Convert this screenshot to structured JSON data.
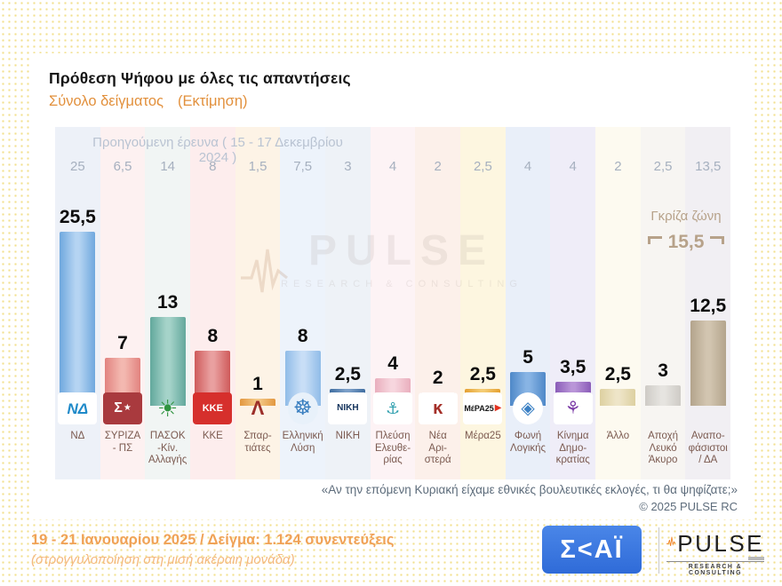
{
  "header": {
    "title": "Πρόθεση Ψήφου με όλες τις απαντήσεις",
    "subtitle_left": "Σύνολο δείγματος",
    "subtitle_right": "(Εκτίμηση)"
  },
  "previous_survey": {
    "label": "Προηγούμενη έρευνα ( 15 - 17 Δεκεμβρίου 2024 )"
  },
  "gray_zone": {
    "label": "Γκρίζα ζώνη",
    "value": "15,5"
  },
  "watermark": {
    "brand": "PULSE",
    "tagline": "RESEARCH & CONSULTING"
  },
  "chart_data": {
    "type": "bar",
    "title": "Πρόθεση Ψήφου με όλες τις απαντήσεις",
    "subtitle": "Σύνολο δείγματος (Εκτίμηση)",
    "categories": [
      "ΝΔ",
      "ΣΥΡΙΖΑ - ΠΣ",
      "ΠΑΣΟΚ -Κίν. Αλλαγής",
      "ΚΚΕ",
      "Σπαρτιάτες",
      "Ελληνική Λύση",
      "ΝΙΚΗ",
      "Πλεύση Ελευθερίας",
      "Νέα Αριστερά",
      "Μέρα25",
      "Φωνή Λογικής",
      "Κίνημα Δημοκρατίας",
      "Άλλο",
      "Αποχή Λευκό Άκυρο",
      "Αναποφάσιστοι / ΔΑ"
    ],
    "series": [
      {
        "name": "Τρέχουσα έρευνα (19 - 21 Ιανουαρίου 2025)",
        "values": [
          25.5,
          7,
          13,
          8,
          1,
          8,
          2.5,
          4,
          2,
          2.5,
          5,
          3.5,
          2.5,
          3,
          12.5
        ]
      },
      {
        "name": "Προηγούμενη έρευνα (15 - 17 Δεκεμβρίου 2024)",
        "values": [
          25,
          6.5,
          14,
          8,
          1.5,
          7.5,
          3,
          4,
          2,
          2.5,
          4,
          4,
          2,
          2.5,
          13.5
        ]
      }
    ],
    "annotations": {
      "gray_zone": 15.5
    },
    "xlabel": "",
    "ylabel": "",
    "ylim": [
      0,
      27
    ],
    "grid": false,
    "legend_position": "none"
  },
  "parties": [
    {
      "name": "ΝΔ",
      "label": "ΝΔ",
      "value": "25,5",
      "prev": "25",
      "band": "#edf1f8",
      "bar_edge": "#6fa8de",
      "bar_mid": "#b5d4f2",
      "logo": {
        "bg": "#ffffff",
        "text": "ΝΔ",
        "fg": "#1f8ac9",
        "size": 17,
        "bold": true,
        "italic": true
      }
    },
    {
      "name": "ΣΥΡΙΖΑ - ΠΣ",
      "label": "ΣΥΡΙΖΑ\n- ΠΣ",
      "value": "7",
      "prev": "6,5",
      "band": "#fdf1f1",
      "bar_edge": "#e2837f",
      "bar_mid": "#f3b8b0",
      "logo": {
        "bg": "#a93a3e",
        "text": "Σ",
        "fg": "#ffffff",
        "size": 16,
        "bold": true,
        "accent": "★",
        "accent_fg": "#ffffff"
      }
    },
    {
      "name": "ΠΑΣΟΚ -Κίν. Αλλαγής",
      "label": "ΠΑΣΟΚ\n-Κίν.\nΑλλαγής",
      "value": "13",
      "prev": "14",
      "band": "#f1f5f4",
      "bar_edge": "#62a89c",
      "bar_mid": "#a5d3c9",
      "logo": {
        "bg": "transparent",
        "text": "☀",
        "fg": "#2f9440",
        "size": 26,
        "bold": true
      }
    },
    {
      "name": "ΚΚΕ",
      "label": "ΚΚΕ",
      "value": "8",
      "prev": "8",
      "band": "#fdeded",
      "bar_edge": "#cf5a5a",
      "bar_mid": "#e9a0a0",
      "logo": {
        "bg": "#d62f2c",
        "text": "ΚΚΕ",
        "fg": "#ffffff",
        "size": 11,
        "bold": true
      }
    },
    {
      "name": "Σπαρτιάτες",
      "label": "Σπαρ-\nτιάτες",
      "value": "1",
      "prev": "1,5",
      "band": "#fdf3e6",
      "bar_edge": "#e3973f",
      "bar_mid": "#f3c887",
      "logo": {
        "bg": "transparent",
        "text": "Λ",
        "fg": "#9c2f2a",
        "size": 22,
        "bold": true
      }
    },
    {
      "name": "Ελληνική Λύση",
      "label": "Ελληνική\nΛύση",
      "value": "8",
      "prev": "7,5",
      "band": "#edf3fb",
      "bar_edge": "#90bce8",
      "bar_mid": "#c8def6",
      "logo": {
        "bg": "#e8f1fa",
        "round": true,
        "text": "☸",
        "fg": "#3a7fc0",
        "size": 24
      }
    },
    {
      "name": "ΝΙΚΗ",
      "label": "ΝΙΚΗ",
      "value": "2,5",
      "prev": "3",
      "band": "#eef2f7",
      "bar_edge": "#3f6da0",
      "bar_mid": "#7b9fc8",
      "logo": {
        "bg": "#ffffff",
        "text": "ΝΙΚΗ",
        "fg": "#14335c",
        "size": 10,
        "bold": true
      }
    },
    {
      "name": "Πλεύση Ελευθερίας",
      "label": "Πλεύση\nΕλευθε-\nρίας",
      "value": "4",
      "prev": "4",
      "band": "#fdf3f5",
      "bar_edge": "#e9aebd",
      "bar_mid": "#f7d6de",
      "logo": {
        "bg": "#ffffff",
        "text": "⚓",
        "fg": "#2f9fae",
        "size": 18
      }
    },
    {
      "name": "Νέα Αριστερά",
      "label": "Νέα\nΑρι-\nστερά",
      "value": "2",
      "prev": "2",
      "band": "#fcf0ea",
      "bar_edge": "#c05f41",
      "bar_mid": "#dd9272",
      "logo": {
        "bg": "#ffffff",
        "text": "ĸ",
        "fg": "#a42f28",
        "size": 20,
        "bold": true
      }
    },
    {
      "name": "Μέρα25",
      "label": "Μέρα25",
      "value": "2,5",
      "prev": "2,5",
      "band": "#fdf6e0",
      "bar_edge": "#e4a030",
      "bar_mid": "#f4cc74",
      "logo": {
        "bg": "#ffffff",
        "text": "MέPA25",
        "fg": "#151515",
        "size": 9,
        "bold": true,
        "accent": "▶",
        "accent_fg": "#e33220"
      }
    },
    {
      "name": "Φωνή Λογικής",
      "label": "Φωνή\nΛογικής",
      "value": "5",
      "prev": "4",
      "band": "#e9eff9",
      "bar_edge": "#4e88c8",
      "bar_mid": "#88b4e4",
      "logo": {
        "bg": "#ffffff",
        "round": true,
        "text": "◈",
        "fg": "#3b80c4",
        "size": 20
      }
    },
    {
      "name": "Κίνημα Δημοκρατίας",
      "label": "Κίνημα\nΔημο-\nκρατίας",
      "value": "3,5",
      "prev": "4",
      "band": "#efedf8",
      "bar_edge": "#8a5cb8",
      "bar_mid": "#b995d8",
      "logo": {
        "bg": "#ffffff",
        "text": "⚘",
        "fg": "#7d3ea8",
        "size": 20,
        "bold": true
      }
    },
    {
      "name": "Άλλο",
      "label": "Άλλο",
      "value": "2,5",
      "prev": "2",
      "band": "#fdfaf0",
      "bar_edge": "#ddd0a0",
      "bar_mid": "#eee5c8",
      "logo": null
    },
    {
      "name": "Αποχή Λευκό Άκυρο",
      "label": "Αποχή\nΛευκό\nΆκυρο",
      "value": "3",
      "prev": "2,5",
      "band": "#f7f5f2",
      "bar_edge": "#cecbc6",
      "bar_mid": "#e6e4e0",
      "logo": null
    },
    {
      "name": "Αναποφάσιστοι / ΔΑ",
      "label": "Αναπο-\nφάσιστοι\n/ ΔΑ",
      "value": "12,5",
      "prev": "13,5",
      "band": "#f1eff3",
      "bar_edge": "#b3a48c",
      "bar_mid": "#d2c5b0",
      "logo": null
    }
  ],
  "footnote": {
    "question": "«Αν την επόμενη Κυριακή είχαμε εθνικές βουλευτικές εκλογές, τι θα ψηφίζατε;»",
    "copyright": "© 2025 PULSE RC"
  },
  "footer": {
    "line1": "19 - 21 Ιανουαρίου 2025 / Δείγμα: 1.124 συνεντεύξεις",
    "line2": "(στρογγυλοποίηση στη μισή ακέραιη μονάδα)"
  },
  "logos": {
    "skai_text": "Σ<ΑΪ",
    "pulse_brand": "PULSE",
    "pulse_tagline": "RESEARCH & CONSULTING"
  },
  "colors": {
    "accent_orange": "#e2903c",
    "footer_orange": "#f0a257",
    "gray_zone_tan": "#b7a28a",
    "skai_blue": "#3b77e0",
    "pulse_wave_orange": "#f08020"
  }
}
